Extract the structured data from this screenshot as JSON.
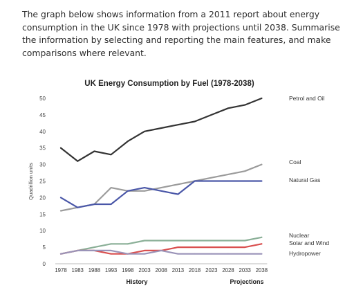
{
  "prompt": {
    "text": "The graph below shows information from a 2011 report about energy consumption in the UK since 1978 with projections until 2038. Summarise the information by selecting and reporting the main features, and make comparisons where relevant."
  },
  "chart_data": {
    "type": "line",
    "title": "UK Energy Consumption by Fuel (1978-2038)",
    "ylabel": "Quadrillion units",
    "xlabel": "",
    "period_labels": [
      "History",
      "Projections"
    ],
    "ylim": [
      0,
      50
    ],
    "yticks": [
      0,
      5,
      10,
      15,
      20,
      25,
      30,
      35,
      40,
      45,
      50
    ],
    "x": [
      "1978",
      "1983",
      "1988",
      "1993",
      "1998",
      "2003",
      "2008",
      "2013",
      "2018",
      "2023",
      "2028",
      "2033",
      "2038"
    ],
    "series": [
      {
        "name": "Petrol and Oil",
        "color": "#333333",
        "values": [
          35,
          31,
          34,
          33,
          37,
          40,
          41,
          42,
          43,
          45,
          47,
          48,
          50
        ]
      },
      {
        "name": "Coal",
        "color": "#9b9b9b",
        "values": [
          16,
          17,
          18,
          23,
          22,
          22,
          23,
          24,
          25,
          26,
          27,
          28,
          30
        ]
      },
      {
        "name": "Natural Gas",
        "color": "#4a57a8",
        "values": [
          20,
          17,
          18,
          18,
          22,
          23,
          22,
          21,
          25,
          25,
          25,
          25,
          25
        ]
      },
      {
        "name": "Nuclear",
        "color": "#8aaf97",
        "values": [
          3,
          4,
          5,
          6,
          6,
          7,
          7,
          7,
          7,
          7,
          7,
          7,
          8
        ]
      },
      {
        "name": "Solar and Wind",
        "color": "#d94f4f",
        "values": [
          3,
          4,
          4,
          3,
          3,
          4,
          4,
          5,
          5,
          5,
          5,
          5,
          6
        ]
      },
      {
        "name": "Hydropower",
        "color": "#9a93b8",
        "values": [
          3,
          4,
          4,
          4,
          3,
          3,
          4,
          3,
          3,
          3,
          3,
          3,
          3
        ]
      }
    ],
    "grid": false,
    "legend": "right-end labels"
  }
}
